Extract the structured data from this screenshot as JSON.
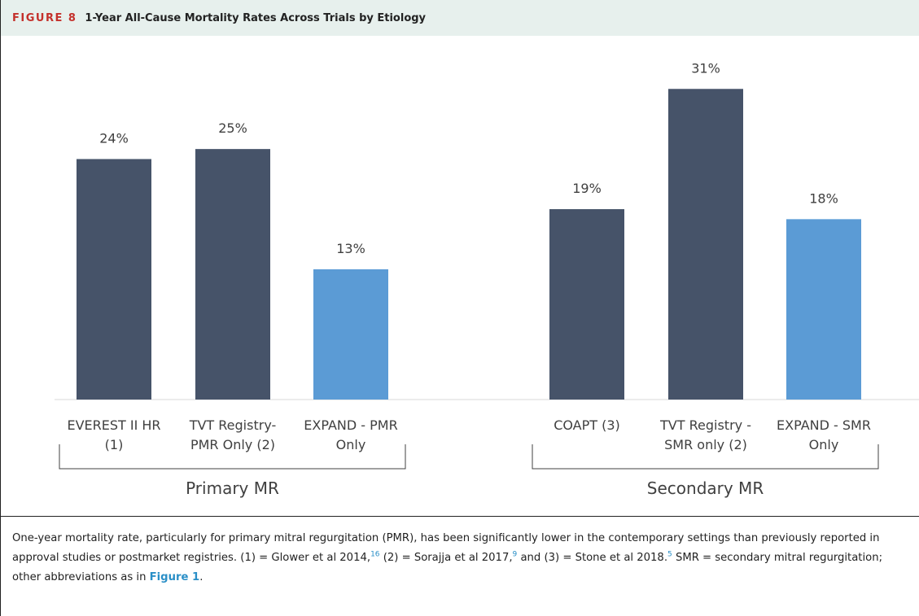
{
  "header": {
    "label": "FIGURE 8",
    "title": "1-Year All-Cause Mortality Rates Across Trials by Etiology"
  },
  "chart_data": {
    "type": "bar",
    "categories": [
      "EVEREST II HR\n(1)",
      "TVT Registry-\nPMR Only (2)",
      "EXPAND - PMR\nOnly",
      "COAPT (3)",
      "TVT Registry -\nSMR only (2)",
      "EXPAND - SMR\nOnly"
    ],
    "values": [
      24,
      25,
      13,
      19,
      31,
      18
    ],
    "value_labels": [
      "24%",
      "25%",
      "13%",
      "19%",
      "31%",
      "18%"
    ],
    "colors": [
      "#465369",
      "#465369",
      "#5b9bd5",
      "#465369",
      "#465369",
      "#5b9bd5"
    ],
    "groups": [
      "Primary MR",
      "Secondary MR"
    ],
    "ylim": [
      0,
      35
    ]
  },
  "caption": [
    "One-year mortality rate, particularly for primary mitral regurgitation (PMR), has been significantly lower in the contemporary settings than previously reported in approval studies or postmarket registries. (1) = Glower et al 2014,",
    "16",
    " (2) = Sorajja et al 2017,",
    "9",
    " and (3) = Stone et al 2018.",
    "5",
    " SMR = secondary mitral regurgitation; other abbreviations as in ",
    "Figure 1",
    "."
  ]
}
